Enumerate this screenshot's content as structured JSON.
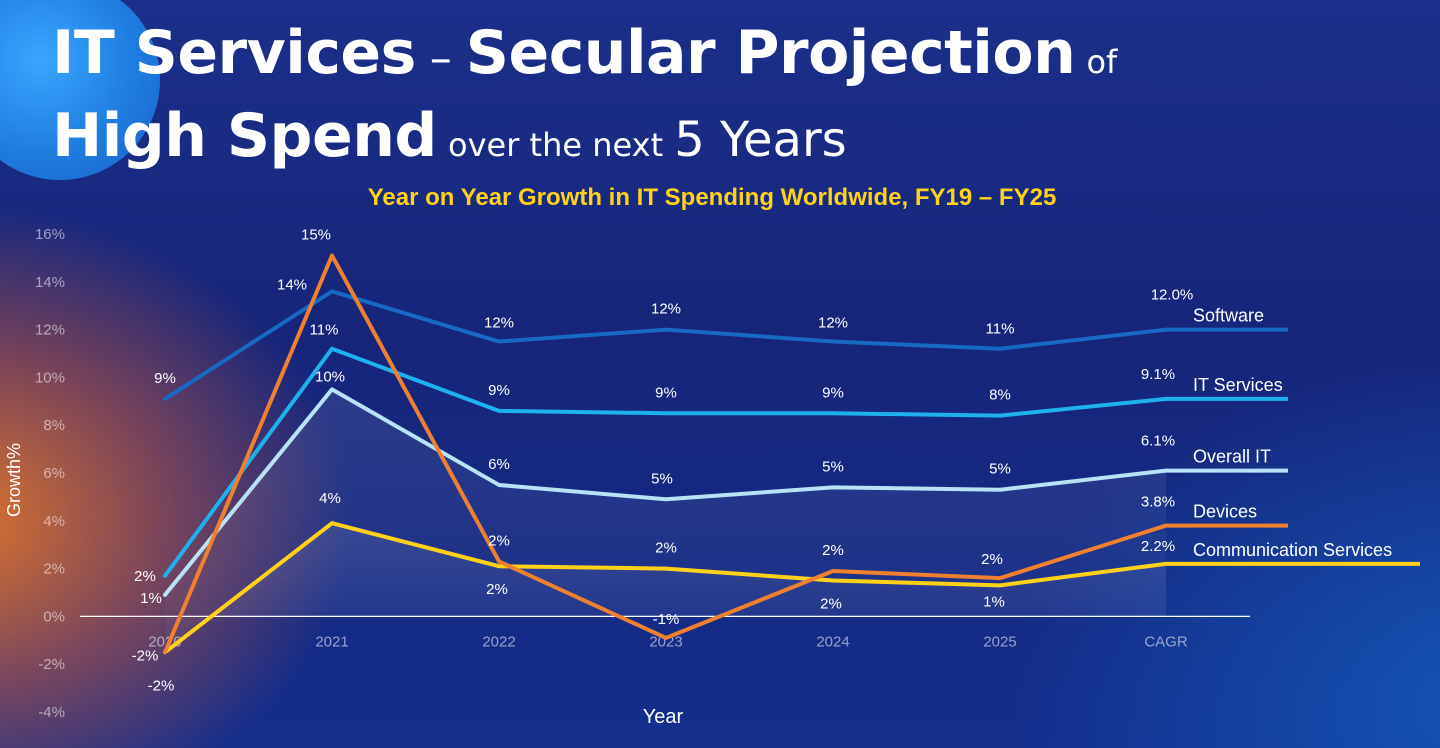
{
  "header": {
    "title_part1": "IT Services",
    "title_dash": "–",
    "title_part2": "Secular Projection",
    "title_of": "of",
    "title_part3": "High Spend",
    "title_over": "over the next",
    "title_years": "5 Years"
  },
  "chart_data": {
    "type": "line",
    "title": "Year on Year Growth in IT Spending Worldwide, FY19 – FY25",
    "xlabel": "Year",
    "ylabel": "Growth%",
    "categories": [
      "2020",
      "2021",
      "2022",
      "2023",
      "2024",
      "2025",
      "CAGR"
    ],
    "y_ticks": [
      "16%",
      "14%",
      "12%",
      "10%",
      "8%",
      "6%",
      "4%",
      "2%",
      "0%",
      "-2%",
      "-4%"
    ],
    "ylim": [
      -4,
      16
    ],
    "grid": false,
    "legend": "right, inline labels",
    "series": [
      {
        "name": "Software",
        "color": "#1769c4",
        "values": [
          9.1,
          13.6,
          11.5,
          12.0,
          11.5,
          11.2,
          12.0
        ],
        "labels": [
          "9%",
          "14%",
          "12%",
          "12%",
          "12%",
          "11%",
          "12.0%"
        ]
      },
      {
        "name": "IT Services",
        "color": "#1fb0ee",
        "values": [
          1.7,
          11.2,
          8.6,
          8.5,
          8.5,
          8.4,
          9.1
        ],
        "labels": [
          "2%",
          "11%",
          "9%",
          "9%",
          "9%",
          "8%",
          "9.1%"
        ]
      },
      {
        "name": "Overall IT",
        "color": "#b8e2f6",
        "values": [
          0.9,
          9.5,
          5.5,
          4.9,
          5.4,
          5.3,
          6.1
        ],
        "labels": [
          "1%",
          "10%",
          "6%",
          "5%",
          "5%",
          "5%",
          "6.1%"
        ]
      },
      {
        "name": "Devices",
        "color": "#ee8030",
        "values": [
          -1.5,
          15.1,
          2.3,
          -0.9,
          1.9,
          1.6,
          3.8
        ],
        "labels": [
          "-2%",
          "15%",
          "2%",
          "-1%",
          "2%",
          "2%",
          "3.8%"
        ]
      },
      {
        "name": "Communication Services",
        "color": "#ffd21a",
        "values": [
          -1.5,
          3.9,
          2.1,
          2.0,
          1.5,
          1.3,
          2.2
        ],
        "labels": [
          "-2%",
          "4%",
          "2%",
          "2%",
          "2%",
          "1%",
          "2.2%"
        ]
      }
    ]
  }
}
